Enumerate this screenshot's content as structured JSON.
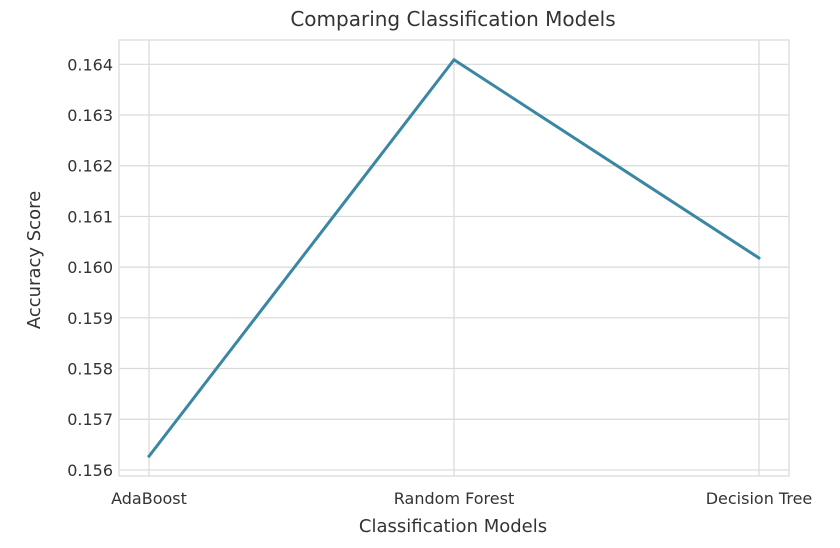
{
  "chart_data": {
    "type": "line",
    "title": "Comparing Classification Models",
    "xlabel": "Classification Models",
    "ylabel": "Accuracy Score",
    "categories": [
      "AdaBoost",
      "Random Forest",
      "Decision Tree"
    ],
    "series": [
      {
        "values": [
          0.15627,
          0.16409,
          0.16018
        ],
        "color": "#3a87a4"
      }
    ],
    "yticks": [
      "0.156",
      "0.157",
      "0.158",
      "0.159",
      "0.160",
      "0.161",
      "0.162",
      "0.163",
      "0.164"
    ],
    "ylim": [
      0.15588,
      0.16448
    ],
    "grid": true,
    "grid_color": "#d9d9d9",
    "legend": "none"
  }
}
